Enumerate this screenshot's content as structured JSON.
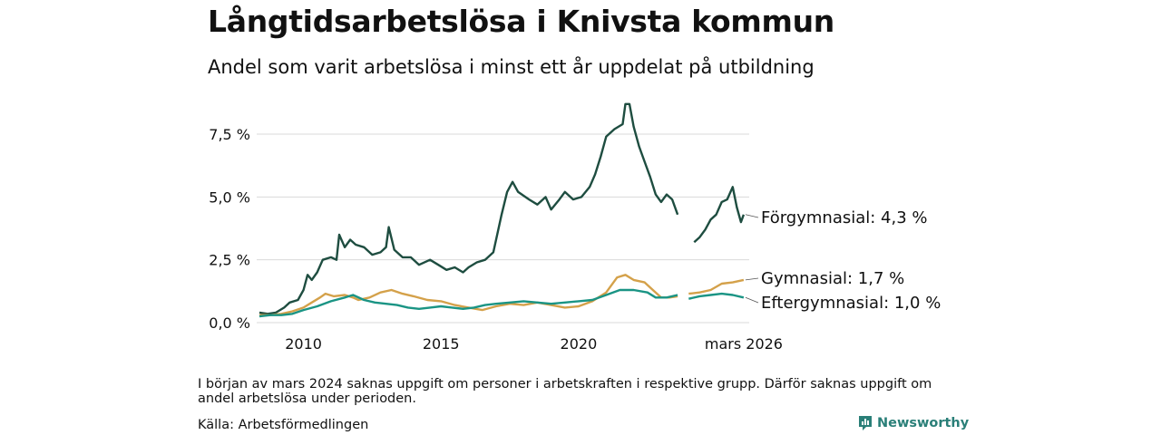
{
  "header": {
    "title": "Långtidsarbetslösa i Knivsta kommun",
    "subtitle": "Andel som varit arbetslösa i minst ett år uppdelat på utbildning"
  },
  "footer": {
    "note": "I början av mars 2024 saknas uppgift om personer i arbetskraften i respektive grupp. Därför saknas uppgift om andel arbetslösa under perioden.",
    "source": "Källa: Arbetsförmedlingen",
    "brand": "Newsworthy",
    "brand_color": "#2a7f78"
  },
  "chart_data": {
    "type": "line",
    "title": "Långtidsarbetslösa i Knivsta kommun",
    "subtitle": "Andel som varit arbetslösa i minst ett år uppdelat på utbildning",
    "xlabel": "",
    "ylabel": "",
    "xlim": [
      2008.3,
      2026.2
    ],
    "ylim": [
      0,
      8.8
    ],
    "grid": true,
    "y_ticks": [
      {
        "value": 0,
        "label": "0,0 %"
      },
      {
        "value": 2.5,
        "label": "2,5 %"
      },
      {
        "value": 5,
        "label": "5,0 %"
      },
      {
        "value": 7.5,
        "label": "7,5 %"
      }
    ],
    "x_ticks": [
      {
        "value": 2010,
        "label": "2010"
      },
      {
        "value": 2015,
        "label": "2015"
      },
      {
        "value": 2020,
        "label": "2020"
      },
      {
        "value": 2026.0,
        "label": "mars 2026"
      }
    ],
    "series": [
      {
        "name": "Förgymnasial",
        "end_label": "Förgymnasial: 4,3 %",
        "color": "#1e4d40",
        "points": [
          [
            2008.4,
            0.4
          ],
          [
            2008.7,
            0.35
          ],
          [
            2009.0,
            0.4
          ],
          [
            2009.3,
            0.6
          ],
          [
            2009.5,
            0.8
          ],
          [
            2009.8,
            0.9
          ],
          [
            2010.0,
            1.3
          ],
          [
            2010.15,
            1.9
          ],
          [
            2010.3,
            1.7
          ],
          [
            2010.5,
            2.0
          ],
          [
            2010.7,
            2.5
          ],
          [
            2011.0,
            2.6
          ],
          [
            2011.2,
            2.5
          ],
          [
            2011.3,
            3.5
          ],
          [
            2011.5,
            3.0
          ],
          [
            2011.7,
            3.3
          ],
          [
            2011.9,
            3.1
          ],
          [
            2012.2,
            3.0
          ],
          [
            2012.5,
            2.7
          ],
          [
            2012.8,
            2.8
          ],
          [
            2013.0,
            3.0
          ],
          [
            2013.1,
            3.8
          ],
          [
            2013.3,
            2.9
          ],
          [
            2013.6,
            2.6
          ],
          [
            2013.9,
            2.6
          ],
          [
            2014.2,
            2.3
          ],
          [
            2014.6,
            2.5
          ],
          [
            2014.9,
            2.3
          ],
          [
            2015.2,
            2.1
          ],
          [
            2015.5,
            2.2
          ],
          [
            2015.8,
            2.0
          ],
          [
            2016.0,
            2.2
          ],
          [
            2016.3,
            2.4
          ],
          [
            2016.6,
            2.5
          ],
          [
            2016.9,
            2.8
          ],
          [
            2017.2,
            4.3
          ],
          [
            2017.4,
            5.2
          ],
          [
            2017.6,
            5.6
          ],
          [
            2017.8,
            5.2
          ],
          [
            2018.2,
            4.9
          ],
          [
            2018.5,
            4.7
          ],
          [
            2018.8,
            5.0
          ],
          [
            2019.0,
            4.5
          ],
          [
            2019.3,
            4.9
          ],
          [
            2019.5,
            5.2
          ],
          [
            2019.8,
            4.9
          ],
          [
            2020.1,
            5.0
          ],
          [
            2020.4,
            5.4
          ],
          [
            2020.6,
            5.9
          ],
          [
            2020.8,
            6.6
          ],
          [
            2021.0,
            7.4
          ],
          [
            2021.3,
            7.7
          ],
          [
            2021.6,
            7.9
          ],
          [
            2021.7,
            8.7
          ],
          [
            2021.85,
            8.7
          ],
          [
            2022.0,
            7.8
          ],
          [
            2022.2,
            7.0
          ],
          [
            2022.4,
            6.4
          ],
          [
            2022.6,
            5.8
          ],
          [
            2022.8,
            5.1
          ],
          [
            2023.0,
            4.8
          ],
          [
            2023.2,
            5.1
          ],
          [
            2023.4,
            4.9
          ],
          [
            2023.6,
            4.3
          ],
          null,
          [
            2024.2,
            3.2
          ],
          [
            2024.4,
            3.4
          ],
          [
            2024.6,
            3.7
          ],
          [
            2024.8,
            4.1
          ],
          [
            2025.0,
            4.3
          ],
          [
            2025.2,
            4.8
          ],
          [
            2025.4,
            4.9
          ],
          [
            2025.6,
            5.4
          ],
          [
            2025.75,
            4.6
          ],
          [
            2025.9,
            4.0
          ],
          [
            2026.0,
            4.3
          ]
        ]
      },
      {
        "name": "Gymnasial",
        "end_label": "Gymnasial: 1,7 %",
        "color": "#d4a14a",
        "points": [
          [
            2008.4,
            0.3
          ],
          [
            2008.8,
            0.3
          ],
          [
            2009.2,
            0.35
          ],
          [
            2009.6,
            0.45
          ],
          [
            2010.0,
            0.6
          ],
          [
            2010.3,
            0.8
          ],
          [
            2010.6,
            1.0
          ],
          [
            2010.8,
            1.15
          ],
          [
            2011.1,
            1.05
          ],
          [
            2011.5,
            1.1
          ],
          [
            2011.8,
            1.0
          ],
          [
            2012.0,
            0.9
          ],
          [
            2012.4,
            1.0
          ],
          [
            2012.8,
            1.2
          ],
          [
            2013.2,
            1.3
          ],
          [
            2013.6,
            1.15
          ],
          [
            2014.0,
            1.05
          ],
          [
            2014.5,
            0.9
          ],
          [
            2015.0,
            0.85
          ],
          [
            2015.5,
            0.7
          ],
          [
            2016.0,
            0.6
          ],
          [
            2016.5,
            0.5
          ],
          [
            2017.0,
            0.65
          ],
          [
            2017.5,
            0.75
          ],
          [
            2018.0,
            0.7
          ],
          [
            2018.5,
            0.8
          ],
          [
            2019.0,
            0.7
          ],
          [
            2019.5,
            0.6
          ],
          [
            2020.0,
            0.65
          ],
          [
            2020.5,
            0.85
          ],
          [
            2021.0,
            1.2
          ],
          [
            2021.4,
            1.8
          ],
          [
            2021.7,
            1.9
          ],
          [
            2022.0,
            1.7
          ],
          [
            2022.4,
            1.6
          ],
          [
            2022.7,
            1.3
          ],
          [
            2023.0,
            1.0
          ],
          [
            2023.3,
            1.0
          ],
          [
            2023.6,
            1.05
          ],
          null,
          [
            2024.0,
            1.15
          ],
          [
            2024.4,
            1.2
          ],
          [
            2024.8,
            1.3
          ],
          [
            2025.2,
            1.55
          ],
          [
            2025.6,
            1.6
          ],
          [
            2026.0,
            1.7
          ]
        ]
      },
      {
        "name": "Eftergymnasial",
        "end_label": "Eftergymnasial: 1,0 %",
        "color": "#1a9484",
        "points": [
          [
            2008.4,
            0.25
          ],
          [
            2008.8,
            0.3
          ],
          [
            2009.2,
            0.3
          ],
          [
            2009.6,
            0.35
          ],
          [
            2010.0,
            0.5
          ],
          [
            2010.5,
            0.65
          ],
          [
            2011.0,
            0.85
          ],
          [
            2011.5,
            1.0
          ],
          [
            2011.8,
            1.1
          ],
          [
            2012.2,
            0.9
          ],
          [
            2012.6,
            0.8
          ],
          [
            2013.0,
            0.75
          ],
          [
            2013.4,
            0.7
          ],
          [
            2013.8,
            0.6
          ],
          [
            2014.2,
            0.55
          ],
          [
            2014.6,
            0.6
          ],
          [
            2015.0,
            0.65
          ],
          [
            2015.4,
            0.6
          ],
          [
            2015.8,
            0.55
          ],
          [
            2016.2,
            0.6
          ],
          [
            2016.6,
            0.7
          ],
          [
            2017.0,
            0.75
          ],
          [
            2017.5,
            0.8
          ],
          [
            2018.0,
            0.85
          ],
          [
            2018.5,
            0.8
          ],
          [
            2019.0,
            0.75
          ],
          [
            2019.5,
            0.8
          ],
          [
            2020.0,
            0.85
          ],
          [
            2020.5,
            0.9
          ],
          [
            2021.0,
            1.1
          ],
          [
            2021.5,
            1.3
          ],
          [
            2022.0,
            1.3
          ],
          [
            2022.5,
            1.2
          ],
          [
            2022.8,
            1.0
          ],
          [
            2023.2,
            1.0
          ],
          [
            2023.6,
            1.1
          ],
          null,
          [
            2024.0,
            0.95
          ],
          [
            2024.4,
            1.05
          ],
          [
            2024.8,
            1.1
          ],
          [
            2025.2,
            1.15
          ],
          [
            2025.6,
            1.1
          ],
          [
            2026.0,
            1.0
          ]
        ]
      }
    ]
  }
}
